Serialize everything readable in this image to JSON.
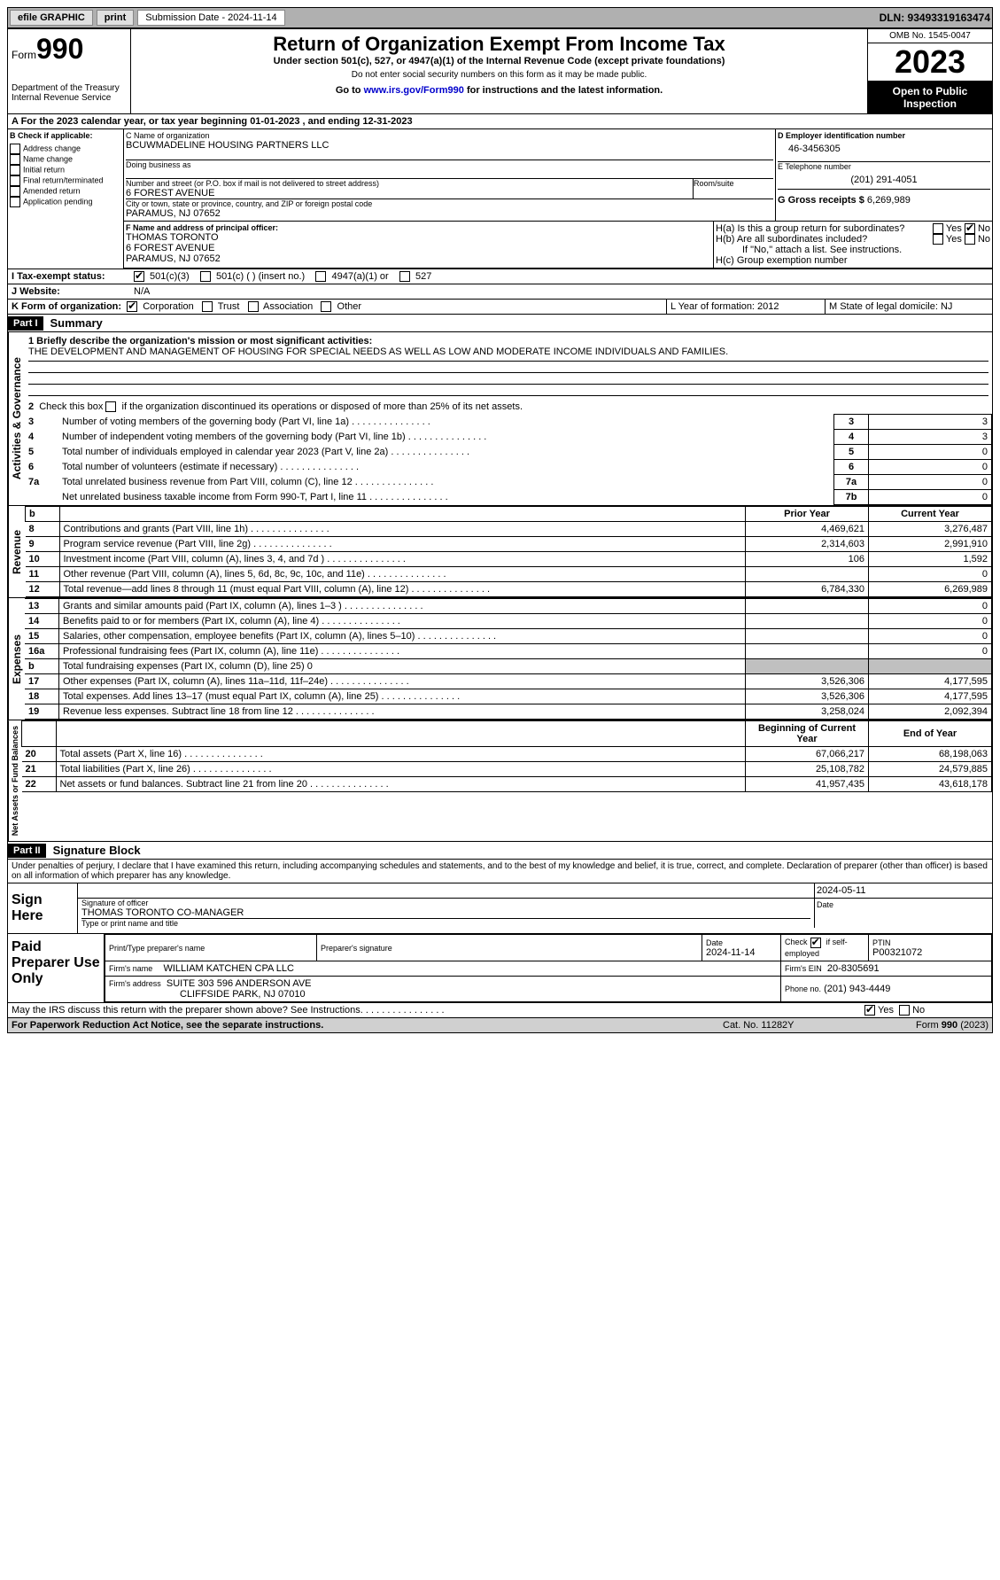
{
  "topbar": {
    "efile": "efile GRAPHIC",
    "print": "print",
    "submission_label": "Submission Date - 2024-11-14",
    "dln_label": "DLN: 93493319163474"
  },
  "header": {
    "form_label": "Form",
    "form_number": "990",
    "dept": "Department of the Treasury",
    "irs": "Internal Revenue Service",
    "title": "Return of Organization Exempt From Income Tax",
    "subtitle": "Under section 501(c), 527, or 4947(a)(1) of the Internal Revenue Code (except private foundations)",
    "ssn_note": "Do not enter social security numbers on this form as it may be made public.",
    "goto": "Go to ",
    "goto_link": "www.irs.gov/Form990",
    "goto_after": " for instructions and the latest information.",
    "omb": "OMB No. 1545-0047",
    "year": "2023",
    "open": "Open to Public Inspection"
  },
  "sectionA": {
    "line": "A For the 2023 calendar year, or tax year beginning 01-01-2023   , and ending 12-31-2023"
  },
  "sectionB": {
    "label": "B Check if applicable:",
    "items": [
      "Address change",
      "Name change",
      "Initial return",
      "Final return/terminated",
      "Amended return",
      "Application pending"
    ]
  },
  "sectionC": {
    "name_label": "C Name of organization",
    "name": "BCUWMADELINE HOUSING PARTNERS LLC",
    "dba_label": "Doing business as",
    "street_label": "Number and street (or P.O. box if mail is not delivered to street address)",
    "street": "6 FOREST AVENUE",
    "room_label": "Room/suite",
    "city_label": "City or town, state or province, country, and ZIP or foreign postal code",
    "city": "PARAMUS, NJ  07652"
  },
  "sectionD": {
    "label": "D Employer identification number",
    "value": "46-3456305"
  },
  "sectionE": {
    "label": "E Telephone number",
    "value": "(201) 291-4051"
  },
  "sectionG": {
    "label": "G Gross receipts $",
    "value": "6,269,989"
  },
  "sectionF": {
    "label": "F  Name and address of principal officer:",
    "name": "THOMAS TORONTO",
    "street": "6 FOREST AVENUE",
    "city": "PARAMUS, NJ  07652"
  },
  "sectionH": {
    "a_label": "H(a)  Is this a group return for subordinates?",
    "b_label": "H(b)  Are all subordinates included?",
    "b_note": "If \"No,\" attach a list. See instructions.",
    "c_label": "H(c)  Group exemption number",
    "yes": "Yes",
    "no": "No"
  },
  "sectionI": {
    "label": "I    Tax-exempt status:",
    "opts": [
      "501(c)(3)",
      "501(c) (  ) (insert no.)",
      "4947(a)(1) or",
      "527"
    ]
  },
  "sectionJ": {
    "label": "J    Website:",
    "value": "N/A"
  },
  "sectionK": {
    "label": "K Form of organization:",
    "opts": [
      "Corporation",
      "Trust",
      "Association",
      "Other"
    ]
  },
  "sectionL": {
    "label": "L Year of formation: 2012"
  },
  "sectionM": {
    "label": "M State of legal domicile: NJ"
  },
  "part1": {
    "bar": "Part I",
    "title": "Summary",
    "q1_label": "1   Briefly describe the organization's mission or most significant activities:",
    "q1_text": "THE DEVELOPMENT AND MANAGEMENT OF HOUSING FOR SPECIAL NEEDS AS WELL AS LOW AND MODERATE INCOME INDIVIDUALS AND FAMILIES.",
    "q2": "2   Check this box     if the organization discontinued its operations or disposed of more than 25% of its net assets.",
    "governance_rows": [
      {
        "n": "3",
        "label": "Number of voting members of the governing body (Part VI, line 1a)",
        "box": "3",
        "val": "3"
      },
      {
        "n": "4",
        "label": "Number of independent voting members of the governing body (Part VI, line 1b)",
        "box": "4",
        "val": "3"
      },
      {
        "n": "5",
        "label": "Total number of individuals employed in calendar year 2023 (Part V, line 2a)",
        "box": "5",
        "val": "0"
      },
      {
        "n": "6",
        "label": "Total number of volunteers (estimate if necessary)",
        "box": "6",
        "val": "0"
      },
      {
        "n": "7a",
        "label": "Total unrelated business revenue from Part VIII, column (C), line 12",
        "box": "7a",
        "val": "0"
      },
      {
        "n": "",
        "label": " Net unrelated business taxable income from Form 990-T, Part I, line 11",
        "box": "7b",
        "val": "0"
      }
    ],
    "col_prior": "Prior Year",
    "col_current": "Current Year",
    "revenue_rows": [
      {
        "n": "8",
        "label": "Contributions and grants (Part VIII, line 1h)",
        "p": "4,469,621",
        "c": "3,276,487"
      },
      {
        "n": "9",
        "label": "Program service revenue (Part VIII, line 2g)",
        "p": "2,314,603",
        "c": "2,991,910"
      },
      {
        "n": "10",
        "label": "Investment income (Part VIII, column (A), lines 3, 4, and 7d )",
        "p": "106",
        "c": "1,592"
      },
      {
        "n": "11",
        "label": "Other revenue (Part VIII, column (A), lines 5, 6d, 8c, 9c, 10c, and 11e)",
        "p": "",
        "c": "0"
      },
      {
        "n": "12",
        "label": "Total revenue—add lines 8 through 11 (must equal Part VIII, column (A), line 12)",
        "p": "6,784,330",
        "c": "6,269,989"
      }
    ],
    "expense_rows": [
      {
        "n": "13",
        "label": "Grants and similar amounts paid (Part IX, column (A), lines 1–3 )",
        "p": "",
        "c": "0"
      },
      {
        "n": "14",
        "label": "Benefits paid to or for members (Part IX, column (A), line 4)",
        "p": "",
        "c": "0"
      },
      {
        "n": "15",
        "label": "Salaries, other compensation, employee benefits (Part IX, column (A), lines 5–10)",
        "p": "",
        "c": "0"
      },
      {
        "n": "16a",
        "label": "Professional fundraising fees (Part IX, column (A), line 11e)",
        "p": "",
        "c": "0"
      },
      {
        "n": "b",
        "label": "Total fundraising expenses (Part IX, column (D), line 25) 0",
        "p": "shade",
        "c": "shade"
      },
      {
        "n": "17",
        "label": "Other expenses (Part IX, column (A), lines 11a–11d, 11f–24e)",
        "p": "3,526,306",
        "c": "4,177,595"
      },
      {
        "n": "18",
        "label": "Total expenses. Add lines 13–17 (must equal Part IX, column (A), line 25)",
        "p": "3,526,306",
        "c": "4,177,595"
      },
      {
        "n": "19",
        "label": "Revenue less expenses. Subtract line 18 from line 12",
        "p": "3,258,024",
        "c": "2,092,394"
      }
    ],
    "col_begin": "Beginning of Current Year",
    "col_end": "End of Year",
    "netassets_rows": [
      {
        "n": "20",
        "label": "Total assets (Part X, line 16)",
        "p": "67,066,217",
        "c": "68,198,063"
      },
      {
        "n": "21",
        "label": "Total liabilities (Part X, line 26)",
        "p": "25,108,782",
        "c": "24,579,885"
      },
      {
        "n": "22",
        "label": "Net assets or fund balances. Subtract line 21 from line 20",
        "p": "41,957,435",
        "c": "43,618,178"
      }
    ],
    "tabs": {
      "gov": "Activities & Governance",
      "rev": "Revenue",
      "exp": "Expenses",
      "net": "Net Assets or Fund Balances"
    }
  },
  "part2": {
    "bar": "Part II",
    "title": "Signature Block",
    "perjury": "Under penalties of perjury, I declare that I have examined this return, including accompanying schedules and statements, and to the best of my knowledge and belief, it is true, correct, and complete. Declaration of preparer (other than officer) is based on all information of which preparer has any knowledge."
  },
  "sign": {
    "here": "Sign Here",
    "sig_label": "Signature of officer",
    "officer": "THOMAS TORONTO CO-MANAGER",
    "type_label": "Type or print name and title",
    "date": "2024-05-11",
    "date_label": "Date"
  },
  "paid": {
    "label": "Paid Preparer Use Only",
    "print_label": "Print/Type preparer's name",
    "sig_label": "Preparer's signature",
    "date_label": "Date",
    "date": "2024-11-14",
    "check_label": "Check",
    "self_emp": "if self-employed",
    "ptin_label": "PTIN",
    "ptin": "P00321072",
    "firm_name_label": "Firm's name",
    "firm_name": "WILLIAM KATCHEN CPA LLC",
    "firm_ein_label": "Firm's EIN",
    "firm_ein": "20-8305691",
    "firm_addr_label": "Firm's address",
    "firm_addr1": "SUITE 303 596 ANDERSON AVE",
    "firm_addr2": "CLIFFSIDE PARK, NJ  07010",
    "phone_label": "Phone no.",
    "phone": "(201) 943-4449"
  },
  "footer": {
    "discuss": "May the IRS discuss this return with the preparer shown above? See Instructions.",
    "yes": "Yes",
    "no": "No",
    "paperwork": "For Paperwork Reduction Act Notice, see the separate instructions.",
    "cat": "Cat. No. 11282Y",
    "form": "Form 990 (2023)"
  }
}
